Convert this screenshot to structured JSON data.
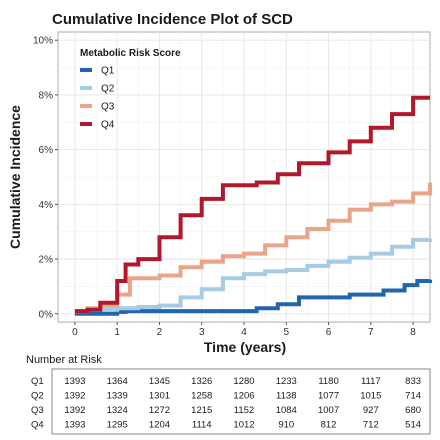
{
  "chart_data": {
    "type": "line",
    "title": "Cumulative Incidence Plot of SCD",
    "xlabel": "Time (years)",
    "ylabel": "Cumulative Incidence",
    "xlim": [
      -0.4,
      8.4
    ],
    "ylim": [
      -0.3,
      10.3
    ],
    "x_ticks": [
      0,
      1,
      2,
      3,
      4,
      5,
      6,
      7,
      8
    ],
    "x_tick_labels": [
      "0",
      "1",
      "2",
      "3",
      "4",
      "5",
      "6",
      "7",
      "8"
    ],
    "y_ticks": [
      0,
      2,
      4,
      6,
      8,
      10
    ],
    "y_tick_labels": [
      "0%",
      "2%",
      "4%",
      "6%",
      "8%",
      "10%"
    ],
    "grid": true,
    "legend": {
      "title": "Metabolic Risk Score",
      "position": "top-left"
    },
    "series": [
      {
        "name": "Q1",
        "color": "#2166ac",
        "x": [
          0,
          1,
          1.2,
          3,
          4,
          4.3,
          4.8,
          5.3,
          6.5,
          7.3,
          7.8,
          8.1,
          8.4
        ],
        "y": [
          0,
          0.07,
          0.1,
          0.1,
          0.1,
          0.2,
          0.35,
          0.6,
          0.7,
          0.85,
          1.05,
          1.2,
          1.25
        ]
      },
      {
        "name": "Q2",
        "color": "#a6cbe3",
        "x": [
          0,
          0.3,
          1,
          1.5,
          2,
          2.5,
          3,
          3.5,
          4,
          4.5,
          5,
          5.5,
          6,
          6.5,
          7,
          7.5,
          8,
          8.4
        ],
        "y": [
          0.1,
          0.15,
          0.2,
          0.25,
          0.3,
          0.6,
          0.9,
          1.3,
          1.45,
          1.55,
          1.6,
          1.75,
          1.9,
          2.05,
          2.2,
          2.45,
          2.7,
          2.75
        ]
      },
      {
        "name": "Q3",
        "color": "#e8a58a",
        "x": [
          0,
          0.3,
          0.6,
          1,
          1.3,
          2,
          2.5,
          3,
          3.5,
          4,
          4.5,
          5,
          5.5,
          6,
          6.5,
          7,
          7.5,
          8,
          8.4
        ],
        "y": [
          0.1,
          0.2,
          0.3,
          0.7,
          1.3,
          1.4,
          1.7,
          1.9,
          2.1,
          2.2,
          2.5,
          2.8,
          3.1,
          3.4,
          3.8,
          4.0,
          4.1,
          4.4,
          4.8
        ]
      },
      {
        "name": "Q4",
        "color": "#b2182b",
        "x": [
          0,
          0.3,
          0.6,
          1,
          1.2,
          1.5,
          2,
          2.5,
          3,
          3.5,
          4,
          4.3,
          4.8,
          5.3,
          6,
          6.5,
          7,
          7.5,
          8,
          8.4
        ],
        "y": [
          0.1,
          0.15,
          0.4,
          1.2,
          1.8,
          2.0,
          2.8,
          3.6,
          4.2,
          4.7,
          4.7,
          4.8,
          5.1,
          5.5,
          5.9,
          6.3,
          6.8,
          7.3,
          7.9,
          7.9
        ]
      }
    ],
    "risk_table": {
      "title": "Number at Risk",
      "rows": [
        {
          "label": "Q1",
          "values": [
            1393,
            1364,
            1345,
            1326,
            1280,
            1233,
            1180,
            1117,
            833
          ]
        },
        {
          "label": "Q2",
          "values": [
            1392,
            1339,
            1301,
            1258,
            1206,
            1138,
            1077,
            1015,
            714
          ]
        },
        {
          "label": "Q3",
          "values": [
            1392,
            1324,
            1272,
            1215,
            1152,
            1084,
            1007,
            927,
            680
          ]
        },
        {
          "label": "Q4",
          "values": [
            1393,
            1295,
            1204,
            1114,
            1012,
            910,
            812,
            712,
            514
          ]
        }
      ]
    }
  }
}
